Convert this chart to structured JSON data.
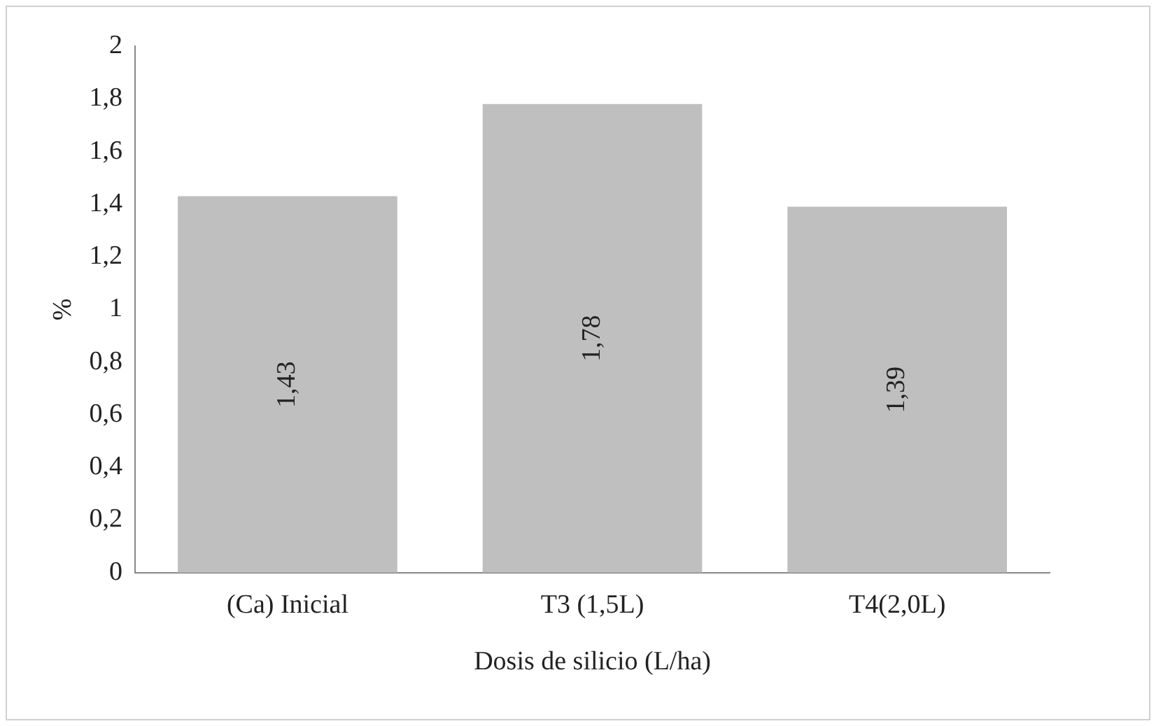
{
  "chart_data": {
    "type": "bar",
    "xlabel": "Dosis de silicio (L/ha)",
    "ylabel": "%",
    "categories": [
      "(Ca) Inicial",
      "T3 (1,5L)",
      "T4(2,0L)"
    ],
    "values": [
      1.43,
      1.78,
      1.39
    ],
    "value_labels": [
      "1,43",
      "1,78",
      "1,39"
    ],
    "color": "#bfbfbf",
    "ylim": [
      0,
      2
    ],
    "yticks": [
      0,
      {
        "value": 0.2,
        "label": "0,2"
      },
      {
        "value": 0.4,
        "label": "0,4"
      },
      {
        "value": 0.6,
        "label": "0,6"
      },
      {
        "value": 0.8,
        "label": "0,8"
      },
      1,
      {
        "value": 1.2,
        "label": "1,2"
      },
      {
        "value": 1.4,
        "label": "1,4"
      },
      {
        "value": 1.6,
        "label": "1,6"
      },
      {
        "value": 1.8,
        "label": "1,8"
      },
      2
    ],
    "grid": false,
    "legend": false
  }
}
